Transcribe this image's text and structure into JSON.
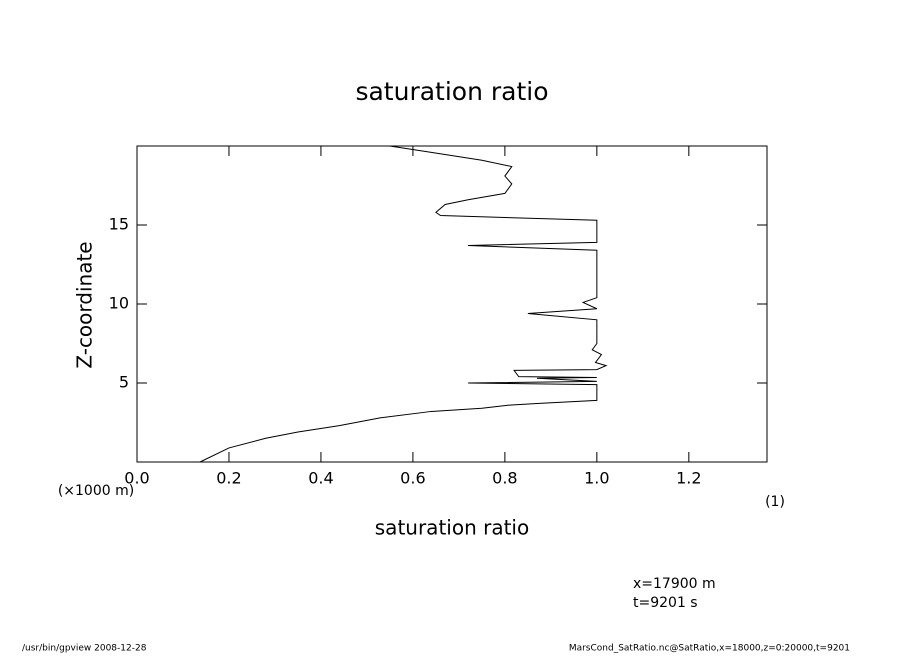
{
  "chart_data": {
    "type": "line",
    "title": "saturation ratio",
    "x_label": "saturation ratio",
    "y_label": "Z-coordinate",
    "y_unit": "(×1000 m)",
    "x_unit": "(1)",
    "annotations": [
      "x=17900 m",
      "t=9201 s"
    ],
    "footer_left": "/usr/bin/gpview  2008-12-28",
    "footer_right": "MarsCond_SatRatio.nc@SatRatio,x=18000,z=0:20000,t=9201",
    "xlim": [
      0,
      1.37
    ],
    "ylim": [
      0,
      20
    ],
    "xticks": [
      {
        "value": 0,
        "label": "0.0"
      },
      {
        "value": 0.2,
        "label": "0.2"
      },
      {
        "value": 0.4,
        "label": "0.4"
      },
      {
        "value": 0.6,
        "label": "0.6"
      },
      {
        "value": 0.8,
        "label": "0.8"
      },
      {
        "value": 1,
        "label": "1.0"
      },
      {
        "value": 1.2,
        "label": "1.2"
      }
    ],
    "yticks": [
      5,
      10,
      15
    ],
    "x": [
      0.137,
      0.2,
      0.28,
      0.35,
      0.44,
      0.53,
      0.64,
      0.75,
      0.81,
      0.87,
      1.0,
      1.0,
      1.0,
      0.72,
      1.0,
      0.87,
      1.0,
      0.83,
      0.82,
      1.0,
      1.02,
      0.997,
      1.01,
      0.99,
      1.0,
      1.0,
      0.85,
      1.0,
      0.97,
      1.0,
      1.0,
      0.72,
      1.0,
      1.0,
      0.66,
      0.65,
      0.67,
      0.72,
      0.8,
      0.815,
      0.8,
      0.815,
      0.75,
      0.64,
      0.55
    ],
    "series": [
      {
        "name": "SatRatio",
        "color": "#000000",
        "values": [
          0,
          0.89,
          1.5,
          1.9,
          2.3,
          2.8,
          3.2,
          3.4,
          3.6,
          3.7,
          3.9,
          4.5,
          4.9,
          5.0,
          5.1,
          5.3,
          5.35,
          5.4,
          5.8,
          5.85,
          6.1,
          6.3,
          6.8,
          7.1,
          7.5,
          9.0,
          9.4,
          9.7,
          10.1,
          10.4,
          13.4,
          13.7,
          13.9,
          15.3,
          15.6,
          15.8,
          16.3,
          16.6,
          17.0,
          17.6,
          18.1,
          18.7,
          19.1,
          19.6,
          20.0
        ]
      }
    ]
  }
}
